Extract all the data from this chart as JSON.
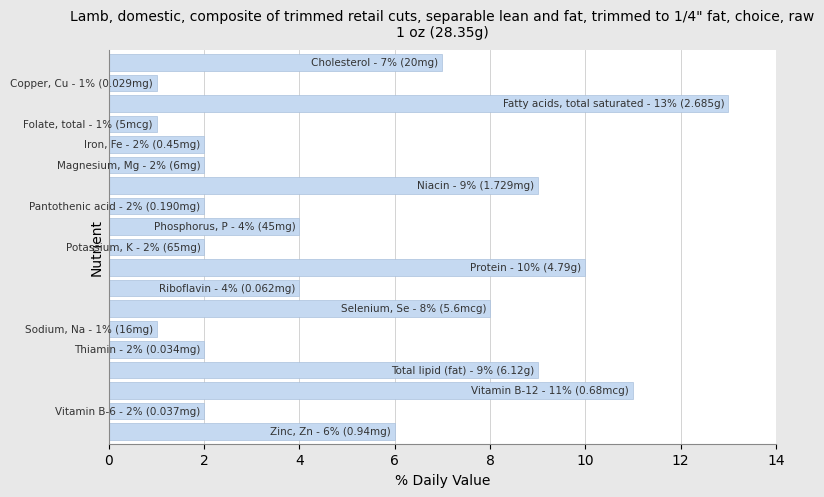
{
  "title": "Lamb, domestic, composite of trimmed retail cuts, separable lean and fat, trimmed to 1/4\" fat, choice, raw\n1 oz (28.35g)",
  "xlabel": "% Daily Value",
  "ylabel": "Nutrient",
  "outer_bg": "#e8e8e8",
  "plot_bg": "#ffffff",
  "bar_color": "#c5d9f1",
  "bar_edge_color": "#aac0dc",
  "xlim": [
    0,
    14
  ],
  "xticks": [
    0,
    2,
    4,
    6,
    8,
    10,
    12,
    14
  ],
  "label_color": "#333333",
  "label_fontsize": 7.5,
  "nutrients": [
    {
      "label": "Cholesterol - 7% (20mg)",
      "value": 7
    },
    {
      "label": "Copper, Cu - 1% (0.029mg)",
      "value": 1
    },
    {
      "label": "Fatty acids, total saturated - 13% (2.685g)",
      "value": 13
    },
    {
      "label": "Folate, total - 1% (5mcg)",
      "value": 1
    },
    {
      "label": "Iron, Fe - 2% (0.45mg)",
      "value": 2
    },
    {
      "label": "Magnesium, Mg - 2% (6mg)",
      "value": 2
    },
    {
      "label": "Niacin - 9% (1.729mg)",
      "value": 9
    },
    {
      "label": "Pantothenic acid - 2% (0.190mg)",
      "value": 2
    },
    {
      "label": "Phosphorus, P - 4% (45mg)",
      "value": 4
    },
    {
      "label": "Potassium, K - 2% (65mg)",
      "value": 2
    },
    {
      "label": "Protein - 10% (4.79g)",
      "value": 10
    },
    {
      "label": "Riboflavin - 4% (0.062mg)",
      "value": 4
    },
    {
      "label": "Selenium, Se - 8% (5.6mcg)",
      "value": 8
    },
    {
      "label": "Sodium, Na - 1% (16mg)",
      "value": 1
    },
    {
      "label": "Thiamin - 2% (0.034mg)",
      "value": 2
    },
    {
      "label": "Total lipid (fat) - 9% (6.12g)",
      "value": 9
    },
    {
      "label": "Vitamin B-12 - 11% (0.68mcg)",
      "value": 11
    },
    {
      "label": "Vitamin B-6 - 2% (0.037mg)",
      "value": 2
    },
    {
      "label": "Zinc, Zn - 6% (0.94mg)",
      "value": 6
    }
  ]
}
